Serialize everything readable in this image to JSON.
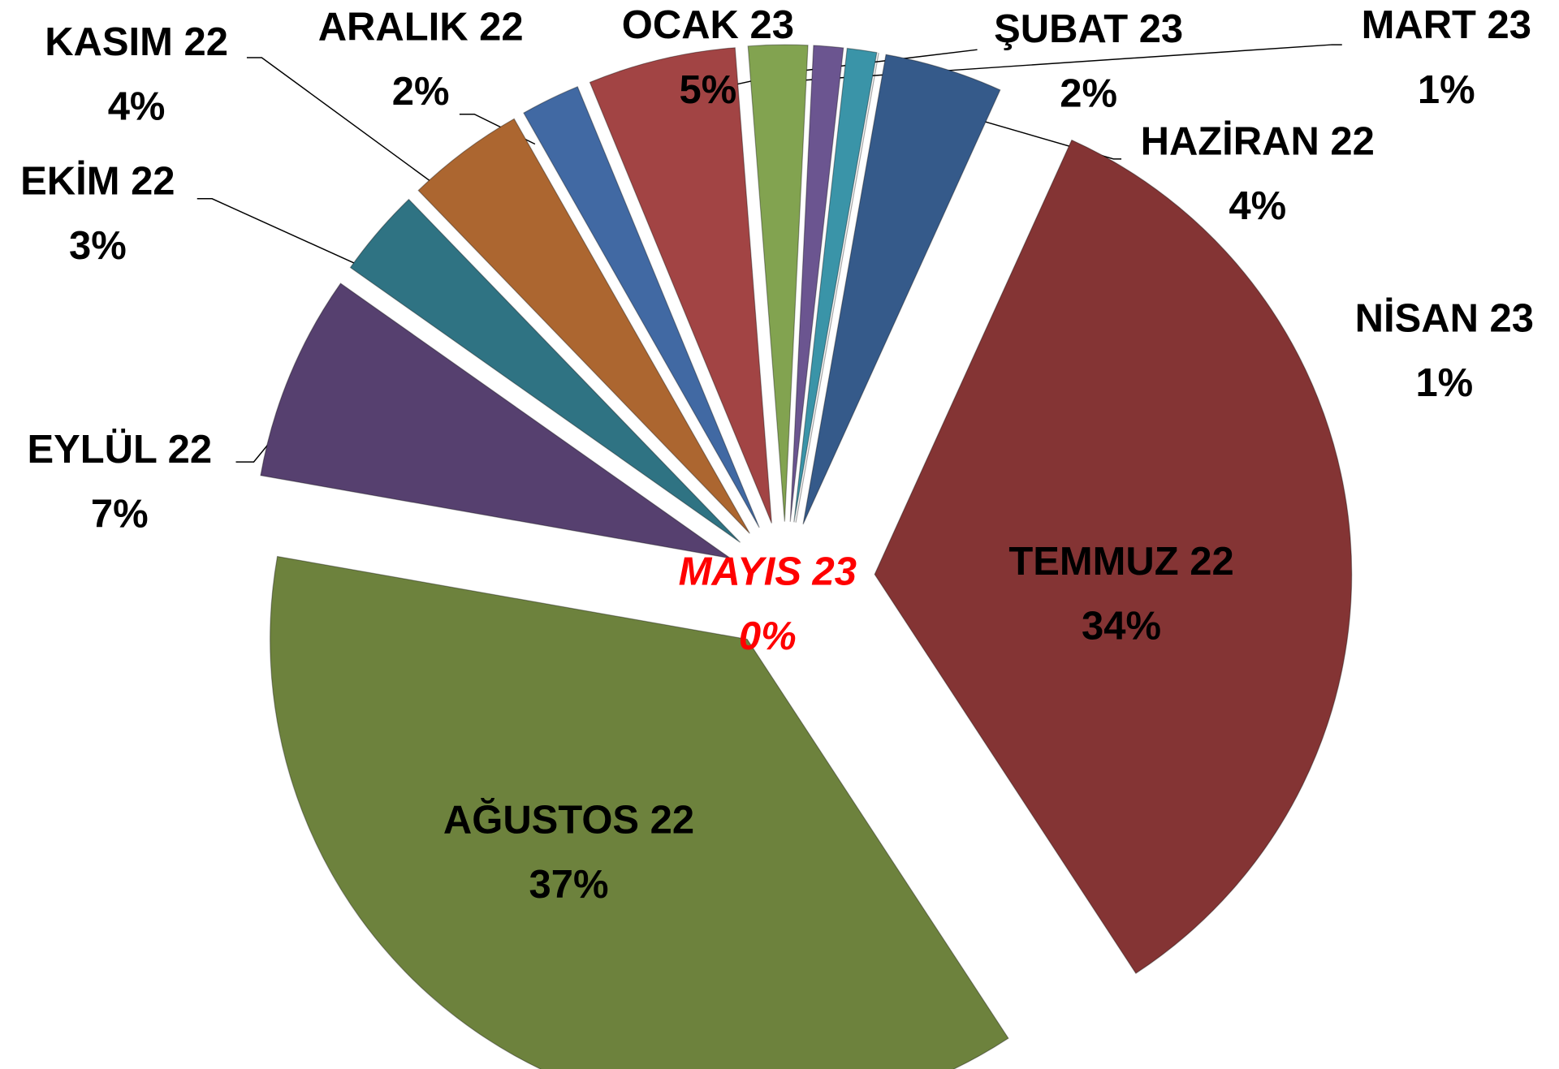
{
  "chart_data": {
    "type": "pie",
    "categories": [
      "HAZİRAN 22",
      "TEMMUZ 22",
      "AĞUSTOS 22",
      "EYLÜL 22",
      "EKİM 22",
      "KASIM 22",
      "ARALIK 22",
      "OCAK 23",
      "ŞUBAT 23",
      "MART 23",
      "NİSAN 23",
      "MAYIS 23"
    ],
    "values": [
      4,
      34,
      37,
      7,
      3,
      4,
      2,
      5,
      2,
      1,
      1,
      0
    ],
    "value_labels": [
      "4%",
      "34%",
      "37%",
      "7%",
      "3%",
      "4%",
      "2%",
      "5%",
      "2%",
      "1%",
      "1%",
      "0%"
    ],
    "colors": [
      "#355a8a",
      "#843434",
      "#6d823d",
      "#56406f",
      "#2f7383",
      "#ac6630",
      "#4169a3",
      "#a24444",
      "#82a350",
      "#6b5590",
      "#3a94a8",
      "#d9873a"
    ]
  }
}
